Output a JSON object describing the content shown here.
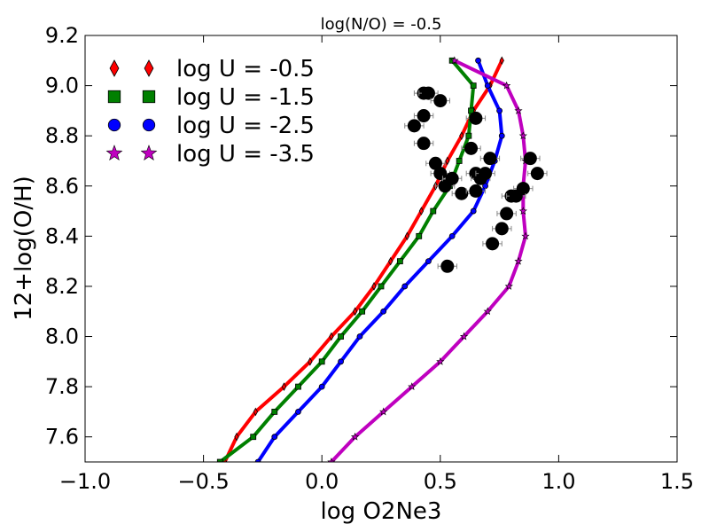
{
  "chart_data": {
    "type": "line",
    "title": "log(N/O) = -0.5",
    "xlabel": "log O2Ne3",
    "ylabel": "12+log(O/H)",
    "xlim": [
      -1.0,
      1.5
    ],
    "ylim": [
      7.5,
      9.2
    ],
    "x_ticks": [
      -1.0,
      -0.5,
      0.0,
      0.5,
      1.0,
      1.5
    ],
    "x_tick_labels": [
      "−1.0",
      "−0.5",
      "0.0",
      "0.5",
      "1.0",
      "1.5"
    ],
    "y_ticks": [
      7.6,
      7.8,
      8.0,
      8.2,
      8.4,
      8.6,
      8.8,
      9.0,
      9.2
    ],
    "y_tick_labels": [
      "7.6",
      "7.8",
      "8.0",
      "8.2",
      "8.4",
      "8.6",
      "8.8",
      "9.0",
      "9.2"
    ],
    "legend_position": "top-left",
    "series": [
      {
        "name": "log U = -0.5",
        "color": "#ff0000",
        "marker": "diamond",
        "points": [
          [
            -0.41,
            7.5
          ],
          [
            -0.36,
            7.6
          ],
          [
            -0.28,
            7.7
          ],
          [
            -0.16,
            7.8
          ],
          [
            -0.05,
            7.9
          ],
          [
            0.04,
            8.0
          ],
          [
            0.14,
            8.1
          ],
          [
            0.22,
            8.2
          ],
          [
            0.29,
            8.3
          ],
          [
            0.36,
            8.4
          ],
          [
            0.42,
            8.5
          ],
          [
            0.48,
            8.6
          ],
          [
            0.53,
            8.7
          ],
          [
            0.59,
            8.8
          ],
          [
            0.64,
            8.9
          ],
          [
            0.71,
            9.0
          ],
          [
            0.76,
            9.1
          ]
        ]
      },
      {
        "name": "log U = -1.5",
        "color": "#008000",
        "marker": "square",
        "points": [
          [
            -0.43,
            7.5
          ],
          [
            -0.29,
            7.6
          ],
          [
            -0.2,
            7.7
          ],
          [
            -0.1,
            7.8
          ],
          [
            0.0,
            7.9
          ],
          [
            0.08,
            8.0
          ],
          [
            0.17,
            8.1
          ],
          [
            0.25,
            8.2
          ],
          [
            0.33,
            8.3
          ],
          [
            0.41,
            8.4
          ],
          [
            0.47,
            8.5
          ],
          [
            0.54,
            8.6
          ],
          [
            0.58,
            8.7
          ],
          [
            0.62,
            8.8
          ],
          [
            0.63,
            8.9
          ],
          [
            0.64,
            9.0
          ],
          [
            0.55,
            9.1
          ]
        ]
      },
      {
        "name": "log U = -2.5",
        "color": "#0000ff",
        "marker": "circle",
        "points": [
          [
            -0.27,
            7.5
          ],
          [
            -0.2,
            7.6
          ],
          [
            -0.1,
            7.7
          ],
          [
            0.0,
            7.8
          ],
          [
            0.08,
            7.9
          ],
          [
            0.16,
            8.0
          ],
          [
            0.26,
            8.1
          ],
          [
            0.35,
            8.2
          ],
          [
            0.45,
            8.3
          ],
          [
            0.55,
            8.4
          ],
          [
            0.64,
            8.5
          ],
          [
            0.69,
            8.6
          ],
          [
            0.73,
            8.7
          ],
          [
            0.76,
            8.8
          ],
          [
            0.75,
            8.9
          ],
          [
            0.7,
            9.0
          ],
          [
            0.66,
            9.1
          ]
        ]
      },
      {
        "name": "log U = -3.5",
        "color": "#bf00bf",
        "marker": "star",
        "points": [
          [
            0.04,
            7.5
          ],
          [
            0.14,
            7.6
          ],
          [
            0.26,
            7.7
          ],
          [
            0.38,
            7.8
          ],
          [
            0.5,
            7.9
          ],
          [
            0.6,
            8.0
          ],
          [
            0.7,
            8.1
          ],
          [
            0.79,
            8.2
          ],
          [
            0.83,
            8.3
          ],
          [
            0.86,
            8.4
          ],
          [
            0.85,
            8.5
          ],
          [
            0.85,
            8.6
          ],
          [
            0.86,
            8.7
          ],
          [
            0.85,
            8.8
          ],
          [
            0.83,
            8.9
          ],
          [
            0.78,
            9.0
          ],
          [
            0.56,
            9.1
          ]
        ]
      }
    ],
    "observations": {
      "color": "#000000",
      "marker": "circle",
      "xerr": 0.04,
      "points": [
        [
          0.43,
          8.97
        ],
        [
          0.45,
          8.97
        ],
        [
          0.5,
          8.94
        ],
        [
          0.43,
          8.88
        ],
        [
          0.39,
          8.84
        ],
        [
          0.43,
          8.77
        ],
        [
          0.65,
          8.87
        ],
        [
          0.48,
          8.69
        ],
        [
          0.63,
          8.75
        ],
        [
          0.71,
          8.71
        ],
        [
          0.5,
          8.65
        ],
        [
          0.52,
          8.6
        ],
        [
          0.55,
          8.63
        ],
        [
          0.59,
          8.57
        ],
        [
          0.65,
          8.65
        ],
        [
          0.67,
          8.63
        ],
        [
          0.69,
          8.65
        ],
        [
          0.65,
          8.58
        ],
        [
          0.88,
          8.71
        ],
        [
          0.91,
          8.65
        ],
        [
          0.8,
          8.56
        ],
        [
          0.85,
          8.59
        ],
        [
          0.82,
          8.56
        ],
        [
          0.78,
          8.49
        ],
        [
          0.76,
          8.43
        ],
        [
          0.72,
          8.37
        ],
        [
          0.53,
          8.28
        ]
      ]
    }
  }
}
